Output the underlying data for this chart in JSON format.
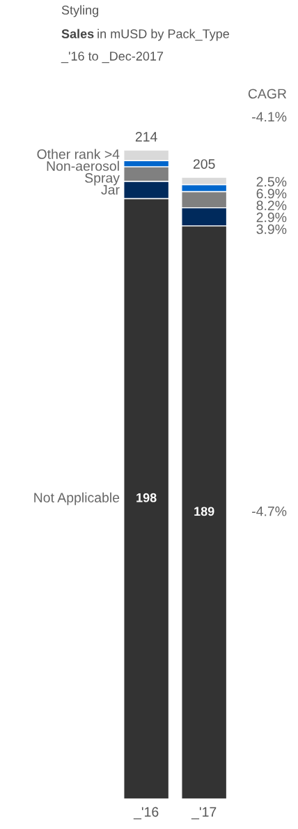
{
  "chart_data": {
    "type": "bar",
    "stacked": true,
    "title": "Styling",
    "subtitle": "Sales in mUSD by Pack_Type",
    "categories": [
      "_'16",
      "_'17"
    ],
    "series": [
      {
        "name": "Not Applicable",
        "color": "#333333",
        "values": [
          198,
          189
        ],
        "value_labels": [
          "198",
          "189"
        ]
      },
      {
        "name": "Jar",
        "color": "#002a5c",
        "values": [
          5.7,
          6.0
        ]
      },
      {
        "name": "Spray",
        "color": "#808080",
        "values": [
          4.8,
          5.3
        ]
      },
      {
        "name": "Non-aerosol",
        "color": "#0066cc",
        "values": [
          2.0,
          2.3
        ]
      },
      {
        "name": "Other rank >4",
        "color": "#d9d9d9",
        "values": [
          3.5,
          2.4
        ]
      }
    ],
    "totals": [
      "214",
      "205"
    ],
    "annotations": [
      "_'16 to _Dec-2017",
      "CAGR",
      "-4.1%",
      "2.5%",
      "6.9%",
      "8.2%",
      "2.9%",
      "3.9%",
      "-4.7%"
    ],
    "legend": false
  }
}
